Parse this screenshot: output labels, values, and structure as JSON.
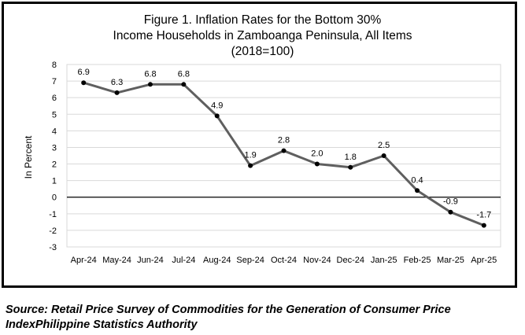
{
  "chart_data": {
    "type": "line",
    "title_lines": [
      "Figure 1. Inflation Rates for the Bottom 30%",
      "Income Households in Zamboanga Peninsula, All Items",
      "(2018=100)"
    ],
    "ylabel": "In Percent",
    "xlabel": "",
    "categories": [
      "Apr-24",
      "May-24",
      "Jun-24",
      "Jul-24",
      "Aug-24",
      "Sep-24",
      "Oct-24",
      "Nov-24",
      "Dec-24",
      "Jan-25",
      "Feb-25",
      "Mar-25",
      "Apr-25"
    ],
    "values": [
      6.9,
      6.3,
      6.8,
      6.8,
      4.9,
      1.9,
      2.8,
      2.0,
      1.8,
      2.5,
      0.4,
      -0.9,
      -1.7
    ],
    "data_labels": [
      "6.9",
      "6.3",
      "6.8",
      "6.8",
      "4.9",
      "1.9",
      "2.8",
      "2.0",
      "1.8",
      "2.5",
      "0.4",
      "-0.9",
      "-1.7"
    ],
    "y_ticks": [
      "8",
      "7",
      "6",
      "5",
      "4",
      "3",
      "2",
      "1",
      "0",
      "-1",
      "-2",
      "-3"
    ],
    "ylim": [
      -3,
      8
    ],
    "grid": true,
    "legend": "none",
    "line_color": "#5f5f5f",
    "marker_color": "#000000"
  },
  "source_text": "Source: Retail Price Survey of Commodities for the Generation of Consumer Price IndexPhilippine Statistics Authority"
}
